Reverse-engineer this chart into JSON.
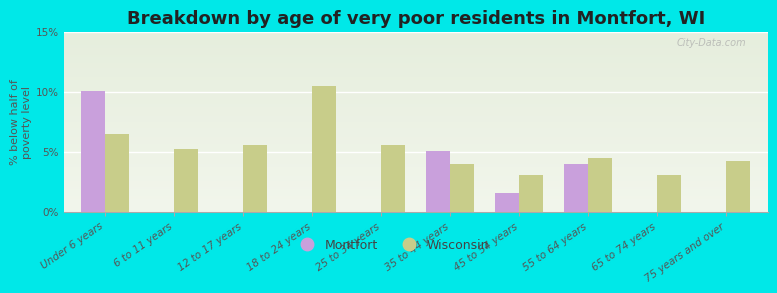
{
  "title": "Breakdown by age of very poor residents in Montfort, WI",
  "ylabel": "% below half of\npoverty level",
  "categories": [
    "Under 6 years",
    "6 to 11 years",
    "12 to 17 years",
    "18 to 24 years",
    "25 to 34 years",
    "35 to 44 years",
    "45 to 54 years",
    "55 to 64 years",
    "65 to 74 years",
    "75 years and over"
  ],
  "montfort": [
    10.1,
    0,
    0,
    0,
    0,
    5.1,
    1.6,
    4.0,
    0,
    0
  ],
  "wisconsin": [
    6.5,
    5.2,
    5.6,
    10.5,
    5.6,
    4.0,
    3.1,
    4.5,
    3.1,
    4.2
  ],
  "montfort_color": "#c9a0dc",
  "wisconsin_color": "#c8cd8a",
  "background_outer": "#00e8e8",
  "plot_bg_top": "#e6eedd",
  "plot_bg_bottom": "#f2f6ec",
  "ylim": [
    0,
    15
  ],
  "yticks": [
    0,
    5,
    10,
    15
  ],
  "ytick_labels": [
    "0%",
    "5%",
    "10%",
    "15%"
  ],
  "bar_width": 0.35,
  "title_fontsize": 13,
  "axis_fontsize": 8,
  "tick_fontsize": 7.5,
  "legend_fontsize": 9,
  "watermark": "City-Data.com"
}
